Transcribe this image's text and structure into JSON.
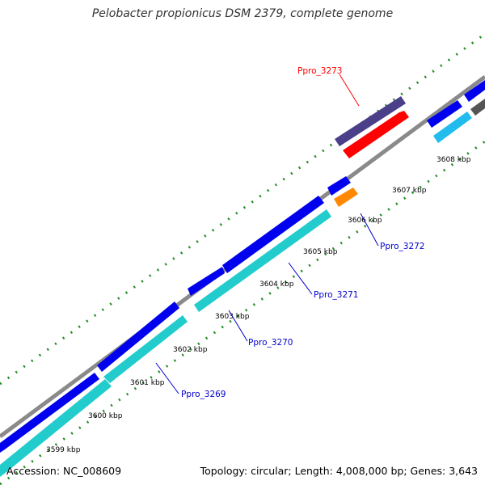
{
  "title": "Pelobacter propionicus DSM 2379, complete genome",
  "footer": {
    "accession": "Accession: NC_008609",
    "summary": "Topology: circular; Length: 4,008,000 bp; Genes: 3,643"
  },
  "ticks": [
    "3599 kbp",
    "3600 kbp",
    "3601 kbp",
    "3602 kbp",
    "3603 kbp",
    "3604 kbp",
    "3605 kbp",
    "3606 kbp",
    "3607 kbp",
    "3608 kbp"
  ],
  "gene_labels": [
    {
      "id": "Ppro_3273",
      "color": "#ff0000"
    },
    {
      "id": "Ppro_3272",
      "color": "#0000cc"
    },
    {
      "id": "Ppro_3271",
      "color": "#0000cc"
    },
    {
      "id": "Ppro_3270",
      "color": "#0000cc"
    },
    {
      "id": "Ppro_3269",
      "color": "#0000cc"
    }
  ],
  "colors": {
    "backbone": "#8a8a8a",
    "cds_forward": "#0000ee",
    "cds_reverse": "#22cccc",
    "highlight_gene": "#ff0000",
    "highlight_partner": "#4a3f88",
    "orange_gene": "#ff8800",
    "light_blue_gene": "#22bbee",
    "tick_dots": "#228b22"
  }
}
